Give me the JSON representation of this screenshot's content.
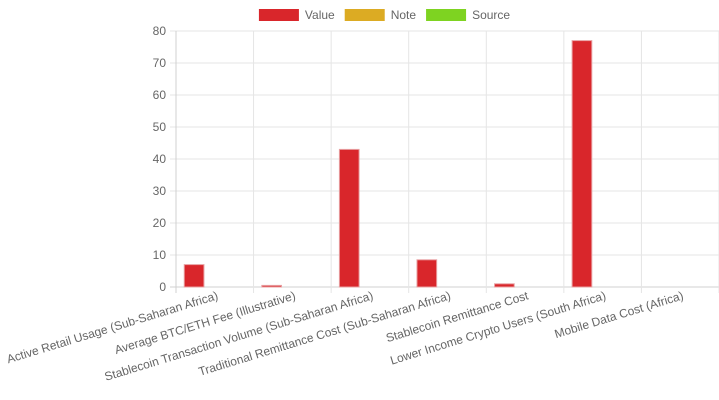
{
  "chart_data": {
    "type": "bar",
    "categories": [
      "Active Retail Usage (Sub-Saharan Africa)",
      "Average BTC/ETH Fee (Illustrative)",
      "Stablecoin Transaction Volume (Sub-Saharan Africa)",
      "Traditional Remittance Cost (Sub-Saharan Africa)",
      "Stablecoin Remittance Cost",
      "Lower Income Crypto Users (South Africa)",
      "Mobile Data Cost (Africa)"
    ],
    "series": [
      {
        "name": "Value",
        "color": "#d9262b",
        "values": [
          7,
          0.5,
          43,
          8.5,
          1,
          77,
          0
        ]
      },
      {
        "name": "Note",
        "color": "#dcab23",
        "values": [
          0,
          0,
          0,
          0,
          0,
          0,
          0
        ]
      },
      {
        "name": "Source",
        "color": "#7ed321",
        "values": [
          0,
          0,
          0,
          0,
          0,
          0,
          0
        ]
      }
    ],
    "ylim": [
      0,
      80
    ],
    "yticks": [
      0,
      10,
      20,
      30,
      40,
      50,
      60,
      70,
      80
    ],
    "grid": true,
    "legend_position": "top-center",
    "title": "",
    "xlabel": "",
    "ylabel": ""
  }
}
